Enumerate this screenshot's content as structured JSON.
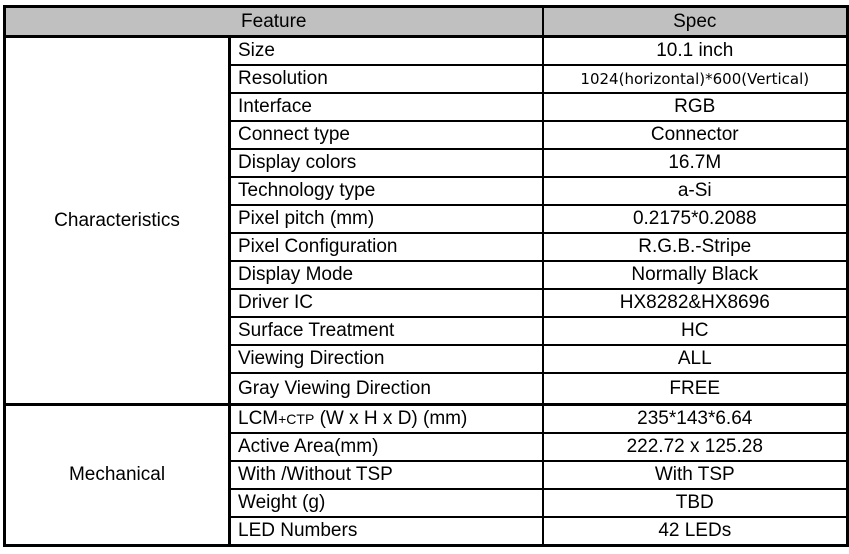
{
  "header": {
    "feature": "Feature",
    "spec": "Spec"
  },
  "groups": [
    {
      "category": "Characteristics",
      "rows": [
        {
          "feature": "Size",
          "spec": "10.1 inch"
        },
        {
          "feature": "Resolution",
          "spec": "1024(horizontal)*600(Vertical)"
        },
        {
          "feature": "Interface",
          "spec": "RGB"
        },
        {
          "feature": "Connect type",
          "spec": "Connector"
        },
        {
          "feature": "Display colors",
          "spec": "16.7M"
        },
        {
          "feature": "Technology type",
          "spec": "a-Si"
        },
        {
          "feature": "Pixel pitch (mm)",
          "spec": "0.2175*0.2088"
        },
        {
          "feature": "Pixel Configuration",
          "spec": "R.G.B.-Stripe"
        },
        {
          "feature": "Display Mode",
          "spec": "Normally Black"
        },
        {
          "feature": "Driver IC",
          "spec": "HX8282&HX8696"
        },
        {
          "feature": "Surface Treatment",
          "spec": "HC"
        },
        {
          "feature": "Viewing Direction",
          "spec": "ALL"
        }
      ],
      "extra_row": {
        "feature": "Gray Viewing Direction",
        "spec": "FREE"
      }
    },
    {
      "category": "Mechanical",
      "rows": [
        {
          "feature": "LCM",
          "feature_sub": "+CTP",
          "feature_rest": " (W x H x D) (mm)",
          "spec": "235*143*6.64"
        },
        {
          "feature": "Active Area(mm)",
          "spec": "222.72 x 125.28"
        },
        {
          "feature": "With /Without TSP",
          "spec": "With TSP"
        },
        {
          "feature": "Weight (g)",
          "spec": "TBD"
        },
        {
          "feature": "LED Numbers",
          "spec": "42 LEDs"
        }
      ]
    }
  ]
}
